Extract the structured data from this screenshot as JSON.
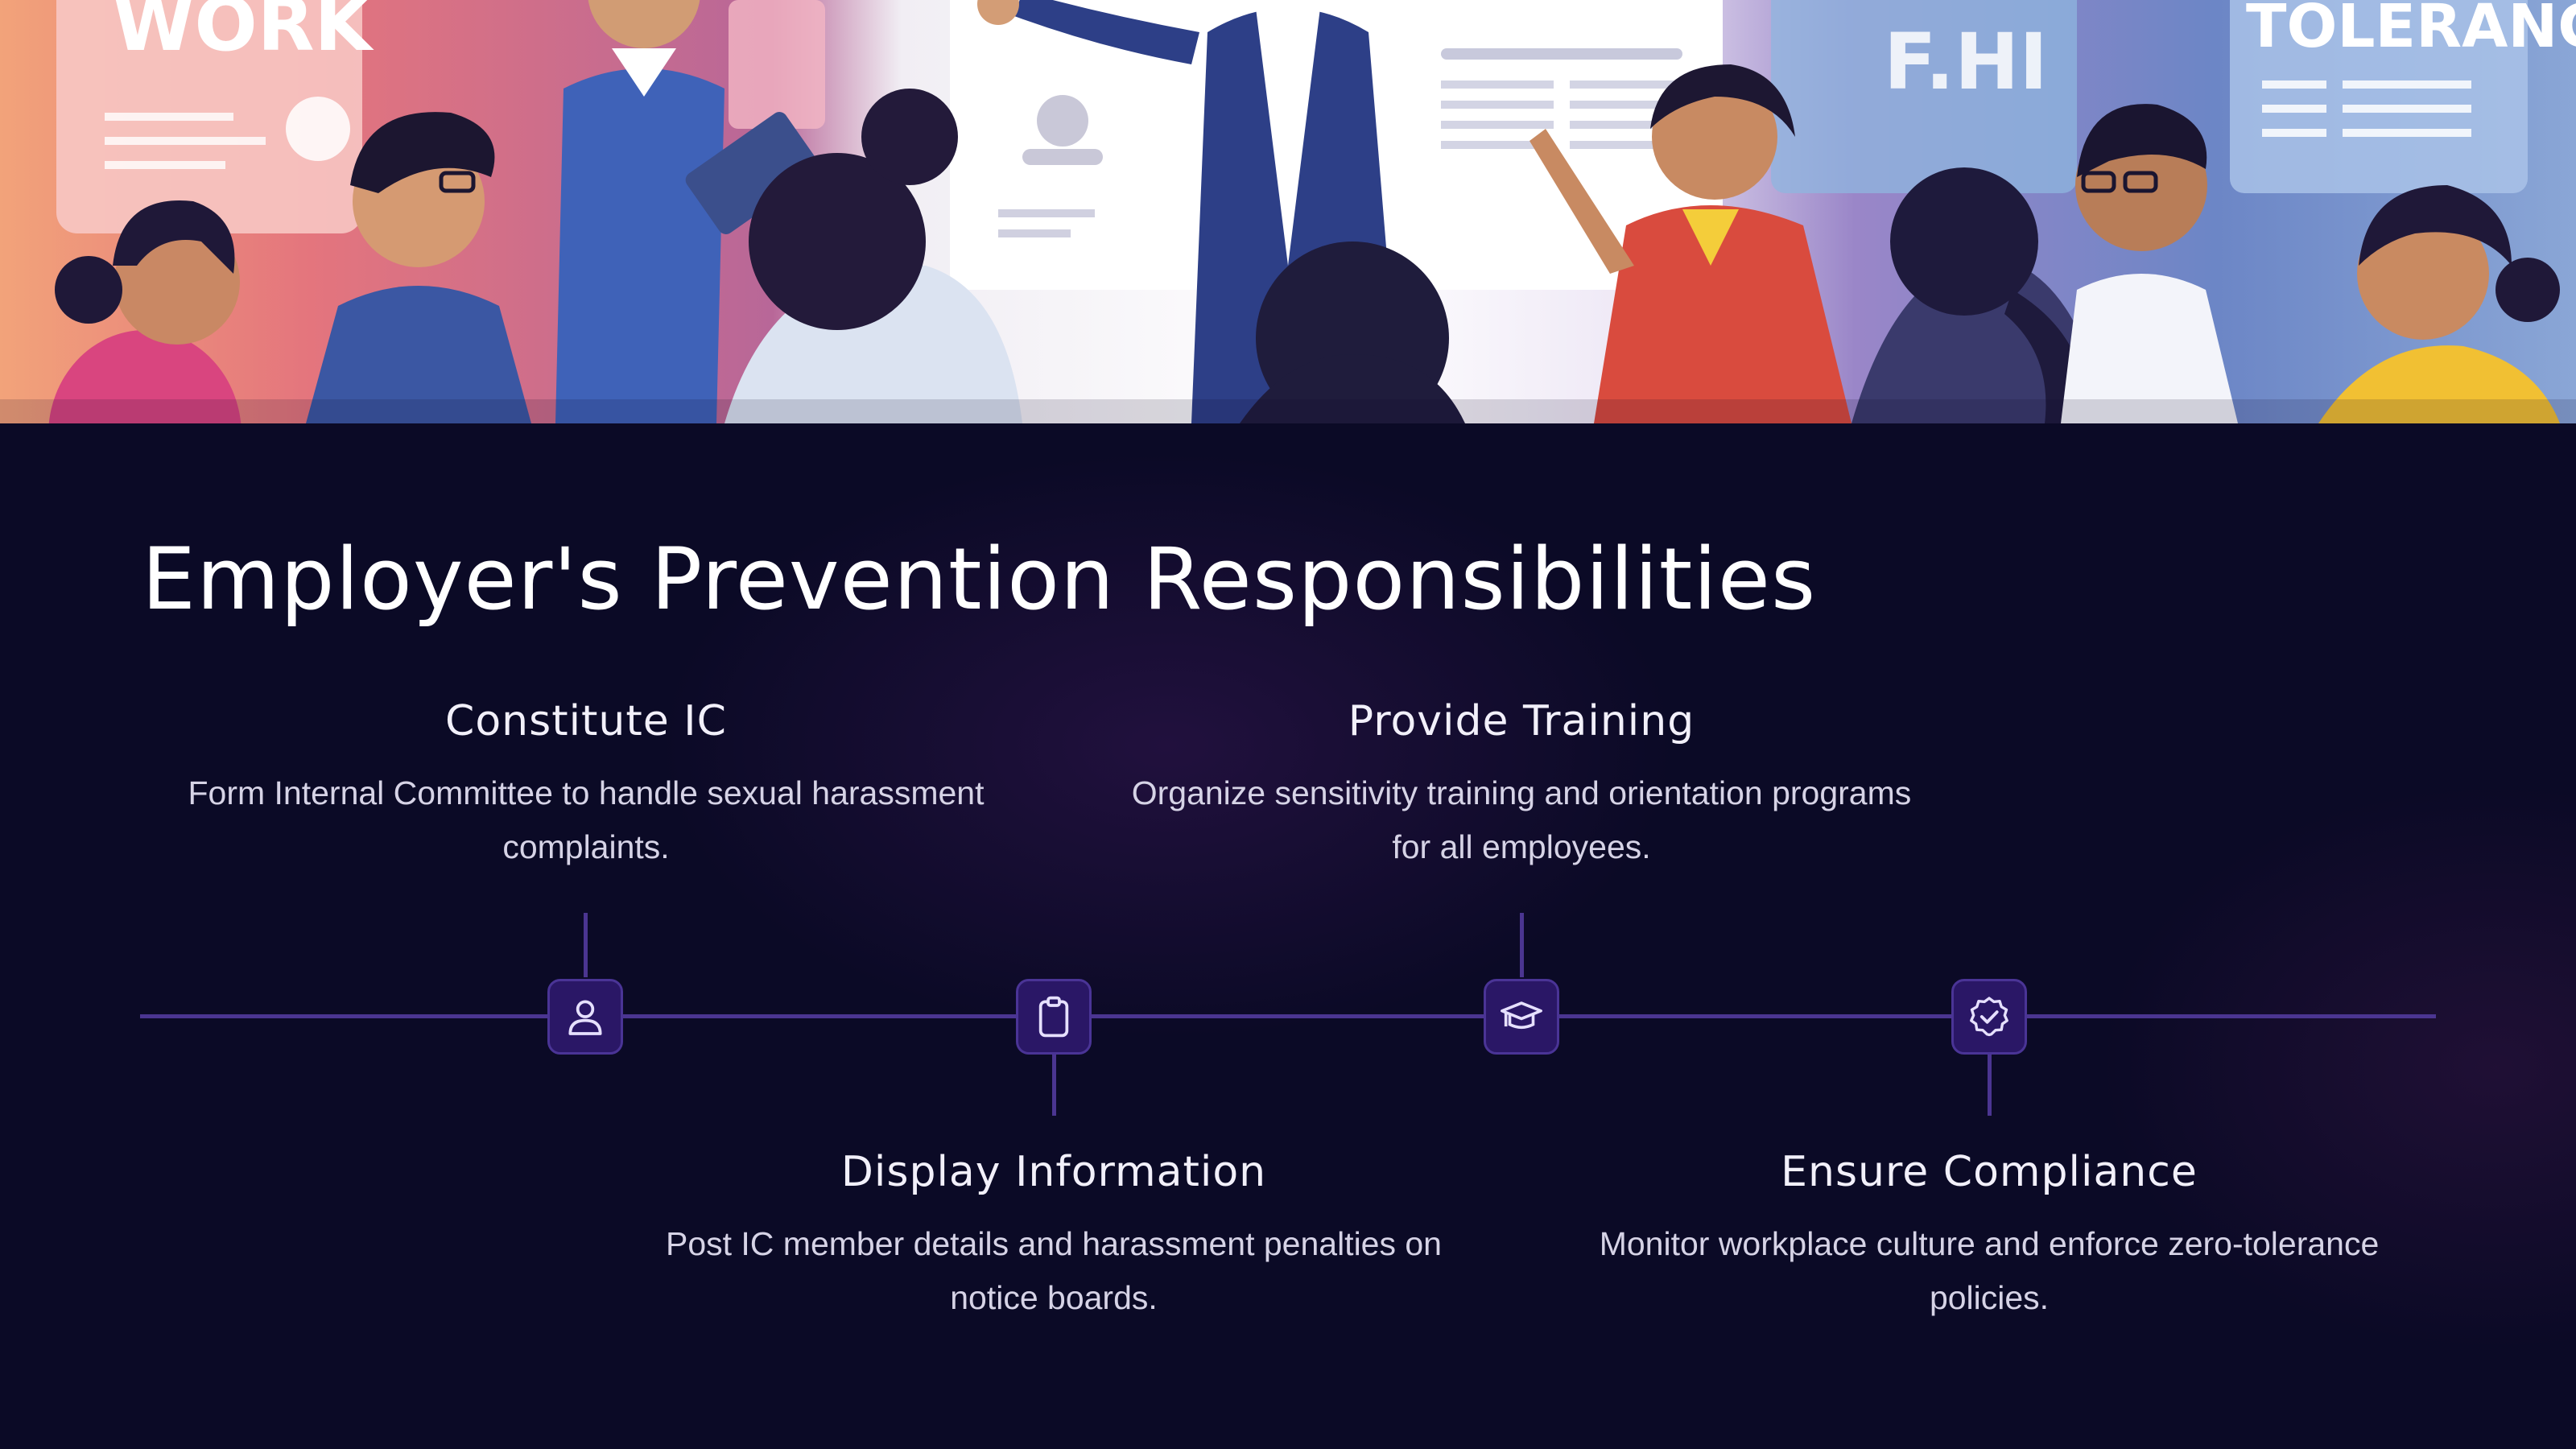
{
  "hero": {
    "left_board_text": "WORK",
    "center_right_board_text": "F.HI",
    "right_board_text": "TOLERANCE"
  },
  "slide": {
    "title": "Employer's Prevention Responsibilities"
  },
  "timeline": {
    "steps": [
      {
        "heading": "Constitute IC",
        "description": "Form Internal Committee to handle sexual harassment complaints.",
        "icon": "user-icon",
        "position": "above"
      },
      {
        "heading": "Display Information",
        "description": "Post IC member details and harassment penalties on notice boards.",
        "icon": "clipboard-icon",
        "position": "below"
      },
      {
        "heading": "Provide Training",
        "description": "Organize sensitivity training and orientation programs for all employees.",
        "icon": "graduation-cap-icon",
        "position": "above"
      },
      {
        "heading": "Ensure Compliance",
        "description": "Monitor workplace culture and enforce zero-tolerance policies.",
        "icon": "badge-check-icon",
        "position": "below"
      }
    ]
  },
  "colors": {
    "background": "#0b0a26",
    "timeline_line": "#4b3591",
    "node_fill": "#2a1766",
    "heading_text": "#f2f0fa",
    "body_text": "#d6d3e6"
  }
}
